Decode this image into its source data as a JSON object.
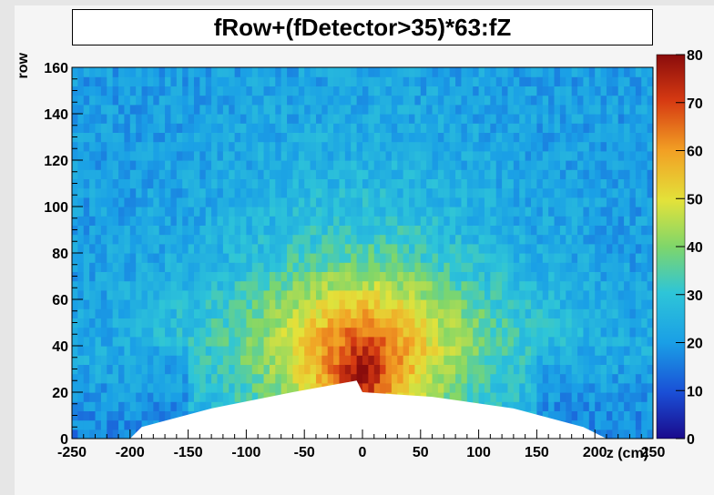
{
  "chart_data": {
    "type": "heatmap",
    "title": "fRow+(fDetector>35)*63:fZ",
    "xlabel": "z (cm)",
    "ylabel": "row",
    "xlim": [
      -250,
      250
    ],
    "ylim": [
      0,
      160
    ],
    "zlim": [
      0,
      80
    ],
    "x_ticks": [
      -250,
      -200,
      -150,
      -100,
      -50,
      0,
      50,
      100,
      150,
      200,
      250
    ],
    "x_tick_labels": [
      "-250",
      "-200",
      "-150",
      "-100",
      "-50",
      "0",
      "50",
      "100",
      "150",
      "200",
      "250"
    ],
    "y_ticks": [
      0,
      20,
      40,
      60,
      80,
      100,
      120,
      140,
      160
    ],
    "y_tick_labels": [
      "0",
      "20",
      "40",
      "60",
      "80",
      "100",
      "120",
      "140",
      "160"
    ],
    "z_ticks": [
      0,
      10,
      20,
      30,
      40,
      50,
      60,
      70,
      80
    ],
    "z_tick_labels": [
      "0",
      "10",
      "20",
      "30",
      "40",
      "50",
      "60",
      "70",
      "80"
    ],
    "colormap": "rainbow",
    "colorbar": "right",
    "empty_region_lower_boundary": [
      {
        "x": -250,
        "y": 0
      },
      {
        "x": -200,
        "y": 0
      },
      {
        "x": -190,
        "y": 5
      },
      {
        "x": -130,
        "y": 13
      },
      {
        "x": -60,
        "y": 20
      },
      {
        "x": -5,
        "y": 25
      },
      {
        "x": 0,
        "y": 20
      },
      {
        "x": 60,
        "y": 18
      },
      {
        "x": 130,
        "y": 13
      },
      {
        "x": 190,
        "y": 5
      },
      {
        "x": 210,
        "y": 0
      },
      {
        "x": 250,
        "y": 0
      }
    ],
    "intensity_profile": {
      "peak_location": {
        "x": 0,
        "y": 27
      },
      "peak_value": 75,
      "value_at_row_160": 20,
      "value_at_row_60": 40,
      "value_at_row_100": 30,
      "lower_corner_value": 10
    }
  }
}
